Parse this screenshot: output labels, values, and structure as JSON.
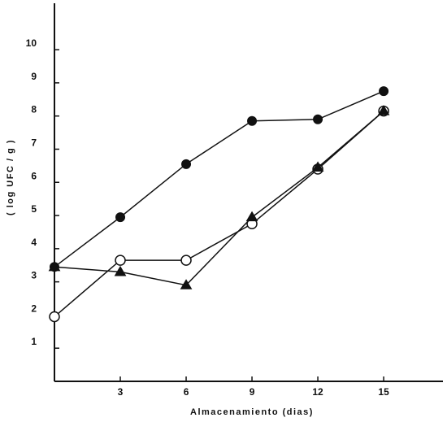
{
  "chart_data": {
    "type": "line",
    "xlabel": "Almacenamiento (dias)",
    "ylabel": "( log UFC / g )",
    "x_ticks": [
      3,
      6,
      9,
      12,
      15
    ],
    "y_ticks": [
      1,
      2,
      3,
      4,
      5,
      6,
      7,
      8,
      9,
      10
    ],
    "xlim": [
      0,
      17.7
    ],
    "ylim": [
      0,
      11.4
    ],
    "grid": false,
    "legend": "none",
    "series": [
      {
        "marker": "filled-circle",
        "x": [
          0,
          3,
          6,
          9,
          12,
          15
        ],
        "values": [
          3.45,
          4.95,
          6.55,
          7.85,
          7.9,
          8.75
        ]
      },
      {
        "marker": "open-circle",
        "x": [
          0,
          3,
          6,
          9,
          12,
          15
        ],
        "values": [
          1.95,
          3.65,
          3.65,
          4.75,
          6.4,
          8.15
        ]
      },
      {
        "marker": "filled-triangle",
        "x": [
          0,
          3,
          6,
          9,
          12,
          15
        ],
        "values": [
          3.45,
          3.3,
          2.9,
          4.95,
          6.45,
          8.15
        ]
      }
    ]
  }
}
